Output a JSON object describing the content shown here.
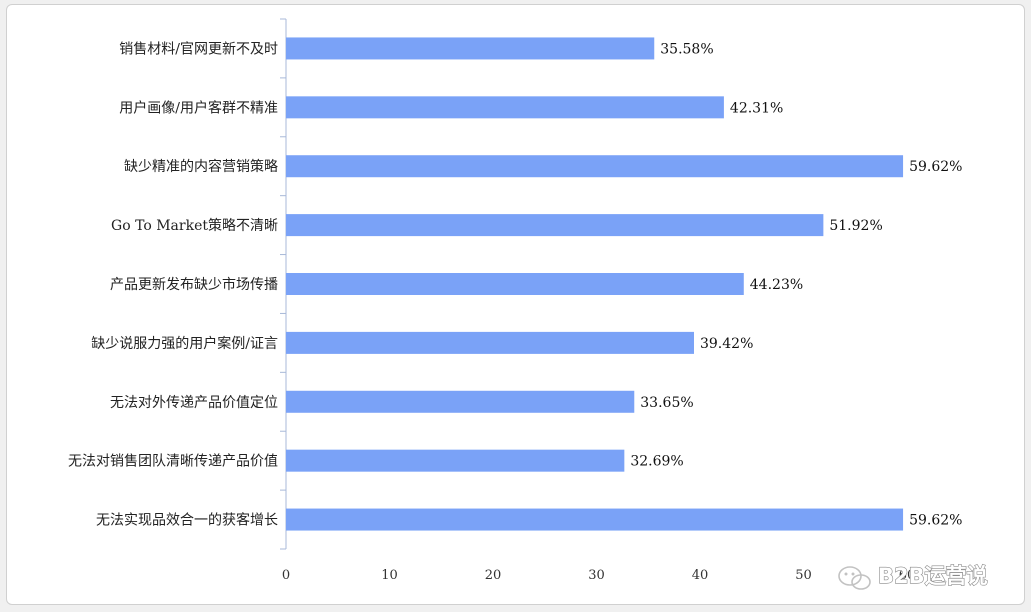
{
  "chart_data": {
    "type": "bar",
    "orientation": "horizontal",
    "categories": [
      "销售材料/官网更新不及时",
      "用户画像/用户客群不精准",
      "缺少精准的内容营销策略",
      "Go To Market策略不清晰",
      "产品更新发布缺少市场传播",
      "缺少说服力强的用户案例/证言",
      "无法对外传递产品价值定位",
      "无法对销售团队清晰传递产品价值",
      "无法实现品效合一的获客增长"
    ],
    "values": [
      35.58,
      42.31,
      59.62,
      51.92,
      44.23,
      39.42,
      33.65,
      32.69,
      59.62
    ],
    "value_labels": [
      "35.58%",
      "42.31%",
      "59.62%",
      "51.92%",
      "44.23%",
      "39.42%",
      "33.65%",
      "32.69%",
      "59.62%"
    ],
    "xticks": [
      "0",
      "10",
      "20",
      "30",
      "40",
      "50",
      "60"
    ],
    "xlim": [
      0,
      60
    ],
    "bar_color": "#7aa2f7",
    "grid": false
  },
  "watermark": {
    "text": "B2B运营说",
    "icon": "wechat-icon"
  }
}
